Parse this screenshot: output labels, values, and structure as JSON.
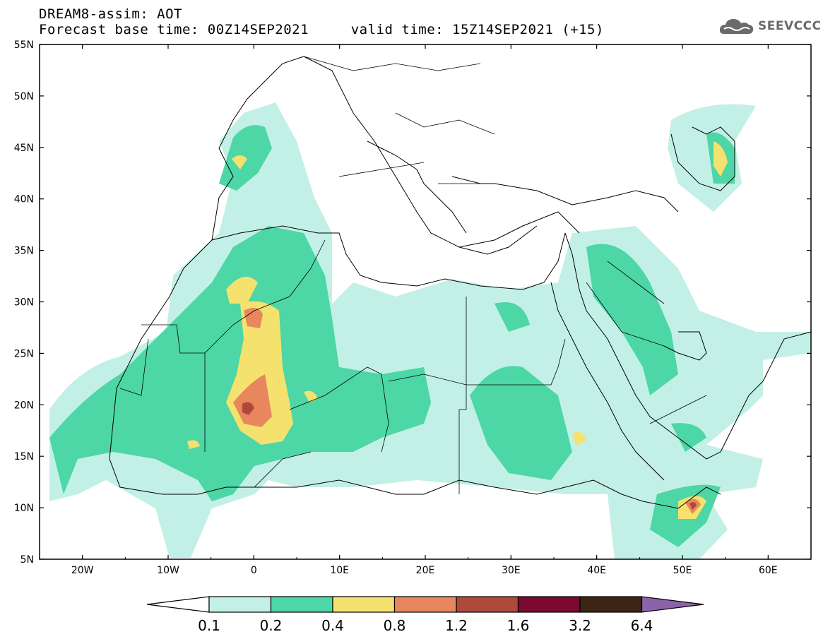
{
  "header": {
    "title_line1": "DREAM8-assim: AOT",
    "title_line2": "Forecast base time: 00Z14SEP2021     valid time: 15Z14SEP2021 (+15)"
  },
  "logo": {
    "text": "SEEVCCC",
    "icon": "cloud-icon"
  },
  "map": {
    "lon_ticks": [
      "20W",
      "10W",
      "0",
      "10E",
      "20E",
      "30E",
      "40E",
      "50E",
      "60E"
    ],
    "lat_ticks": [
      "55N",
      "50N",
      "45N",
      "40N",
      "35N",
      "30N",
      "25N",
      "20N",
      "15N",
      "10N",
      "5N"
    ],
    "lon_range": [
      -25,
      65
    ],
    "lat_range": [
      5,
      55
    ]
  },
  "colorbar": {
    "labels": [
      "0.1",
      "0.2",
      "0.4",
      "0.8",
      "1.2",
      "1.6",
      "3.2",
      "6.4"
    ],
    "colors": [
      "#c2f0e6",
      "#4dd6a6",
      "#f5e26e",
      "#e8875e",
      "#ae4a3b",
      "#7c0a2e",
      "#3e2414"
    ],
    "over_color": "#8a63a8",
    "under_color": "#ffffff"
  },
  "legend": {
    "levels": [
      {
        "min": 0.1,
        "max": 0.2,
        "color": "#c2f0e6"
      },
      {
        "min": 0.2,
        "max": 0.4,
        "color": "#4dd6a6"
      },
      {
        "min": 0.4,
        "max": 0.8,
        "color": "#f5e26e"
      },
      {
        "min": 0.8,
        "max": 1.2,
        "color": "#e8875e"
      },
      {
        "min": 1.2,
        "max": 1.6,
        "color": "#ae4a3b"
      }
    ]
  }
}
